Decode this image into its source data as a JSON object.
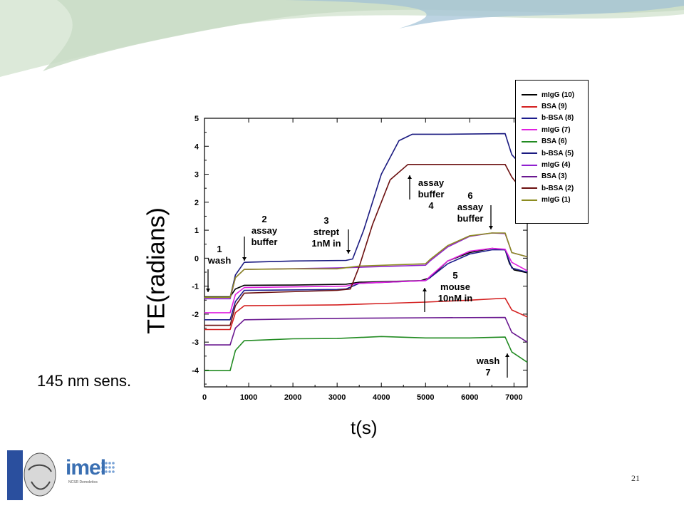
{
  "slide": {
    "sens_label": "145 nm sens.",
    "page_number": "21",
    "logos": {
      "imel_text": "imel",
      "imel_sub": "NCSR Demokritos"
    },
    "header_colors": [
      "#c9dcc6",
      "#9fc0d6",
      "#dce9d9"
    ]
  },
  "chart_data": {
    "type": "line",
    "xlabel": "t(s)",
    "ylabel": "TE(radians)",
    "xlim": [
      0,
      7300
    ],
    "ylim": [
      -4.6,
      5.0
    ],
    "x_ticks": [
      "0",
      "1000",
      "2000",
      "3000",
      "4000",
      "5000",
      "6000",
      "7000"
    ],
    "y_ticks": [
      "-4",
      "-3",
      "-2",
      "-1",
      "0",
      "1",
      "2",
      "3",
      "4",
      "5"
    ],
    "legend_position": "right",
    "series": [
      {
        "name": "mIgG (10)",
        "color": "#000000",
        "points": [
          [
            0,
            -1.38
          ],
          [
            580,
            -1.38
          ],
          [
            700,
            -1.1
          ],
          [
            900,
            -0.97
          ],
          [
            2000,
            -0.96
          ],
          [
            3200,
            -0.93
          ],
          [
            3500,
            -0.86
          ],
          [
            4500,
            -0.82
          ],
          [
            4900,
            -0.8
          ],
          [
            5100,
            -0.7
          ],
          [
            5500,
            -0.1
          ],
          [
            6000,
            0.2
          ],
          [
            6500,
            0.35
          ],
          [
            6800,
            0.3
          ],
          [
            6900,
            -0.2
          ],
          [
            7000,
            -0.42
          ],
          [
            7300,
            -0.52
          ]
        ]
      },
      {
        "name": "BSA (9)",
        "color": "#d42020",
        "points": [
          [
            0,
            -2.55
          ],
          [
            580,
            -2.55
          ],
          [
            700,
            -1.95
          ],
          [
            900,
            -1.7
          ],
          [
            3000,
            -1.67
          ],
          [
            4000,
            -1.62
          ],
          [
            5000,
            -1.57
          ],
          [
            6000,
            -1.5
          ],
          [
            6800,
            -1.43
          ],
          [
            6950,
            -1.85
          ],
          [
            7300,
            -2.1
          ]
        ]
      },
      {
        "name": "b-BSA (8)",
        "color": "#1c1c8c",
        "points": [
          [
            0,
            -2.2
          ],
          [
            580,
            -2.2
          ],
          [
            700,
            -1.55
          ],
          [
            900,
            -1.15
          ],
          [
            3000,
            -1.12
          ],
          [
            3200,
            -1.1
          ],
          [
            3500,
            -0.9
          ],
          [
            5000,
            -0.8
          ],
          [
            5100,
            -0.7
          ],
          [
            5500,
            -0.2
          ],
          [
            6000,
            0.15
          ],
          [
            6500,
            0.3
          ],
          [
            6800,
            0.3
          ],
          [
            6950,
            -0.35
          ],
          [
            7300,
            -0.5
          ]
        ]
      },
      {
        "name": "mIgG (7)",
        "color": "#e020e0",
        "points": [
          [
            0,
            -1.95
          ],
          [
            580,
            -1.95
          ],
          [
            700,
            -1.3
          ],
          [
            900,
            -1.05
          ],
          [
            3200,
            -1.0
          ],
          [
            3450,
            -0.9
          ],
          [
            5000,
            -0.8
          ],
          [
            5100,
            -0.65
          ],
          [
            5500,
            -0.1
          ],
          [
            6000,
            0.25
          ],
          [
            6500,
            0.35
          ],
          [
            6800,
            0.32
          ],
          [
            6950,
            -0.15
          ],
          [
            7300,
            -0.45
          ]
        ]
      },
      {
        "name": "BSA (6)",
        "color": "#228b22",
        "points": [
          [
            0,
            -4.02
          ],
          [
            580,
            -4.02
          ],
          [
            700,
            -3.3
          ],
          [
            900,
            -2.95
          ],
          [
            2000,
            -2.88
          ],
          [
            3000,
            -2.87
          ],
          [
            4000,
            -2.8
          ],
          [
            5000,
            -2.85
          ],
          [
            6000,
            -2.85
          ],
          [
            6800,
            -2.82
          ],
          [
            6950,
            -3.35
          ],
          [
            7300,
            -3.72
          ]
        ]
      },
      {
        "name": "b-BSA (5)",
        "color": "#1a1a80",
        "points": [
          [
            0,
            -1.4
          ],
          [
            580,
            -1.4
          ],
          [
            700,
            -0.6
          ],
          [
            900,
            -0.15
          ],
          [
            2000,
            -0.1
          ],
          [
            3200,
            -0.08
          ],
          [
            3350,
            -0.03
          ],
          [
            3600,
            1.0
          ],
          [
            4000,
            3.0
          ],
          [
            4400,
            4.2
          ],
          [
            4700,
            4.43
          ],
          [
            5500,
            4.43
          ],
          [
            6800,
            4.45
          ],
          [
            6950,
            3.7
          ],
          [
            7300,
            3.1
          ]
        ]
      },
      {
        "name": "mIgG (4)",
        "color": "#9020d0",
        "points": [
          [
            0,
            -1.45
          ],
          [
            580,
            -1.45
          ],
          [
            700,
            -0.7
          ],
          [
            900,
            -0.4
          ],
          [
            3000,
            -0.35
          ],
          [
            5000,
            -0.25
          ],
          [
            5100,
            -0.1
          ],
          [
            5500,
            0.4
          ],
          [
            6000,
            0.78
          ],
          [
            6500,
            0.9
          ],
          [
            6800,
            0.88
          ],
          [
            6950,
            0.2
          ],
          [
            7300,
            0.05
          ]
        ]
      },
      {
        "name": "BSA (3)",
        "color": "#6a1890",
        "points": [
          [
            0,
            -3.1
          ],
          [
            580,
            -3.1
          ],
          [
            700,
            -2.5
          ],
          [
            900,
            -2.2
          ],
          [
            3000,
            -2.15
          ],
          [
            5000,
            -2.13
          ],
          [
            6800,
            -2.12
          ],
          [
            6950,
            -2.65
          ],
          [
            7300,
            -3.0
          ]
        ]
      },
      {
        "name": "b-BSA (2)",
        "color": "#6b0f0f",
        "points": [
          [
            0,
            -2.4
          ],
          [
            580,
            -2.4
          ],
          [
            700,
            -1.7
          ],
          [
            900,
            -1.25
          ],
          [
            3000,
            -1.15
          ],
          [
            3300,
            -1.1
          ],
          [
            3500,
            -0.3
          ],
          [
            3800,
            1.2
          ],
          [
            4200,
            2.8
          ],
          [
            4600,
            3.35
          ],
          [
            6800,
            3.35
          ],
          [
            6950,
            2.9
          ],
          [
            7300,
            2.2
          ]
        ]
      },
      {
        "name": "mIgG (1)",
        "color": "#8c8c20",
        "points": [
          [
            0,
            -1.4
          ],
          [
            580,
            -1.4
          ],
          [
            700,
            -0.7
          ],
          [
            900,
            -0.4
          ],
          [
            2000,
            -0.38
          ],
          [
            3000,
            -0.38
          ],
          [
            3500,
            -0.28
          ],
          [
            5000,
            -0.2
          ],
          [
            5100,
            -0.05
          ],
          [
            5500,
            0.45
          ],
          [
            6000,
            0.8
          ],
          [
            6500,
            0.9
          ],
          [
            6800,
            0.9
          ],
          [
            6950,
            0.2
          ],
          [
            7300,
            0.05
          ]
        ]
      }
    ],
    "annotations": [
      {
        "id": "ann-1",
        "lines": [
          "1",
          "wash"
        ]
      },
      {
        "id": "ann-2",
        "lines": [
          "2",
          "assay",
          "buffer"
        ]
      },
      {
        "id": "ann-3",
        "lines": [
          "3",
          "strept",
          "1nM in"
        ]
      },
      {
        "id": "ann-4",
        "lines": [
          "assay",
          "buffer",
          "4"
        ]
      },
      {
        "id": "ann-5",
        "lines": [
          "5",
          "mouse",
          "10nM in"
        ]
      },
      {
        "id": "ann-6",
        "lines": [
          "6",
          "assay",
          "buffer"
        ]
      },
      {
        "id": "ann-7",
        "lines": [
          "wash",
          "7"
        ]
      }
    ]
  }
}
